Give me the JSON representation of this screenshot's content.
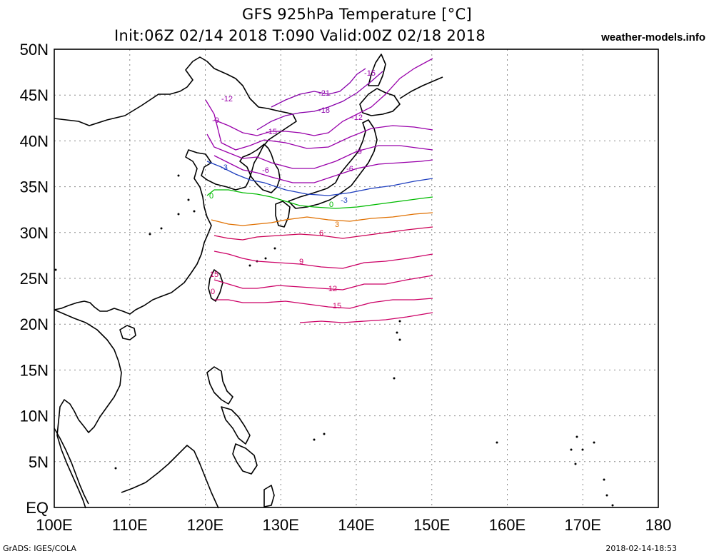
{
  "title": {
    "line1": "GFS 925hPa Temperature [°C]",
    "line2": "Init:06Z 02/14 2018 T:090 Valid:00Z 02/18 2018",
    "site": "weather-models.info"
  },
  "footer": {
    "left": "GrADS: IGES/COLA",
    "right": "2018-02-14-18:53"
  },
  "map": {
    "lon_range": [
      100,
      180
    ],
    "lat_range": [
      0,
      50
    ],
    "grid": "dotted",
    "lon_labels": [
      "100E",
      "110E",
      "120E",
      "130E",
      "140E",
      "150E",
      "160E",
      "170E",
      "180"
    ],
    "lat_labels": [
      "EQ",
      "5N",
      "10N",
      "15N",
      "20N",
      "25N",
      "30N",
      "35N",
      "40N",
      "45N",
      "50N"
    ],
    "data_domain": {
      "lon": [
        120,
        150
      ],
      "lat": [
        20,
        50
      ]
    }
  },
  "contours": [
    {
      "value": "-21",
      "color": "#8800aa"
    },
    {
      "value": "-18",
      "color": "#8800aa"
    },
    {
      "value": "-15",
      "color": "#9900aa"
    },
    {
      "value": "-12",
      "color": "#9900aa"
    },
    {
      "value": "-9",
      "color": "#9900aa"
    },
    {
      "value": "-6",
      "color": "#9900aa"
    },
    {
      "value": "-3",
      "color": "#1f3fbf"
    },
    {
      "value": "0",
      "color": "#00bb00"
    },
    {
      "value": "3",
      "color": "#e07000"
    },
    {
      "value": "6",
      "color": "#cc0055"
    },
    {
      "value": "9",
      "color": "#cc0066"
    },
    {
      "value": "12",
      "color": "#cc0066"
    },
    {
      "value": "15",
      "color": "#cc0066"
    }
  ]
}
